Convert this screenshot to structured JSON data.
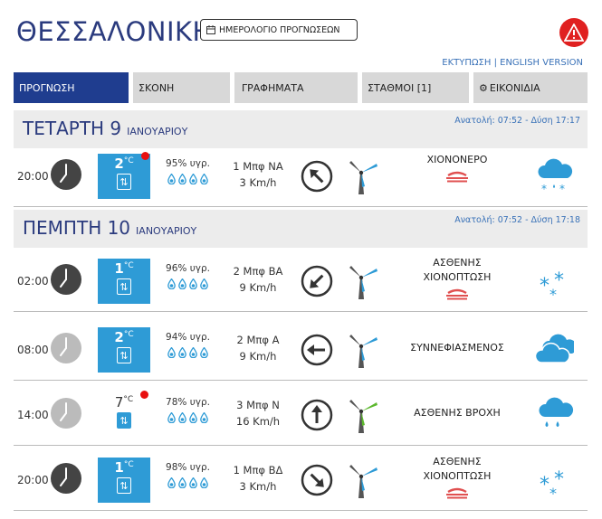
{
  "header": {
    "city": "ΘΕΣΣΑΛΟΝΙΚΗ",
    "calendar_button": "ΗΜΕΡΟΛΟΓΙΟ ΠΡΟΓΝΩΣΕΩΝ",
    "print_link": "ΕΚΤΥΠΩΣΗ",
    "separator": "|",
    "english_link": "ENGLISH VERSION"
  },
  "tabs": [
    {
      "label": "ΠΡΟΓΝΩΣΗ",
      "active": true
    },
    {
      "label": "ΣΚΟΝΗ"
    },
    {
      "label": "ΓΡΑΦΗΜΑΤΑ"
    },
    {
      "label": "ΣΤΑΘΜΟΙ [1]"
    },
    {
      "label": "ΕΙΚΟΝΙΔΙΑ",
      "icon": "gear-icon"
    }
  ],
  "days": [
    {
      "name": "ΤΕΤΑΡΤΗ 9",
      "month": "ΙΑΝΟΥΑΡΙΟΥ",
      "sun": "Ανατολή: 07:52 - Δύση 17:17",
      "rows": [
        {
          "time": "20:00",
          "clock": "night",
          "temp": "2",
          "unit": "°C",
          "temp_style": "blue",
          "alert": true,
          "humidity": "95% υγρ.",
          "beaufort": "1 Μπφ ΝΑ",
          "speed": "3 Km/h",
          "wind_dir": "arrow-northwest-icon",
          "turbine": "blue",
          "condition": [
            "ΧΙΟΝΟΝΕΡΟ"
          ],
          "fog": true,
          "weather_icon": "sleet-icon"
        }
      ]
    },
    {
      "name": "ΠΕΜΠΤΗ 10",
      "month": "ΙΑΝΟΥΑΡΙΟΥ",
      "sun": "Ανατολή: 07:52 - Δύση 17:18",
      "rows": [
        {
          "time": "02:00",
          "clock": "night",
          "temp": "1",
          "unit": "°C",
          "temp_style": "blue",
          "alert": false,
          "humidity": "96% υγρ.",
          "beaufort": "2 Μπφ ΒΑ",
          "speed": "9 Km/h",
          "wind_dir": "arrow-southwest-icon",
          "turbine": "blue",
          "condition": [
            "ΑΣΘΕΝΗΣ",
            "ΧΙΟΝΟΠΤΩΣΗ"
          ],
          "fog": true,
          "weather_icon": "snow-icon"
        },
        {
          "time": "08:00",
          "clock": "day",
          "temp": "2",
          "unit": "°C",
          "temp_style": "blue",
          "alert": false,
          "humidity": "94% υγρ.",
          "beaufort": "2 Μπφ Α",
          "speed": "9 Km/h",
          "wind_dir": "arrow-west-icon",
          "turbine": "blue",
          "condition": [
            "ΣΥΝΝΕΦΙΑΣΜΕΝΟΣ"
          ],
          "fog": false,
          "weather_icon": "cloudy-icon"
        },
        {
          "time": "14:00",
          "clock": "day",
          "temp": "7",
          "unit": "°C",
          "temp_style": "plain",
          "alert": true,
          "humidity": "78% υγρ.",
          "beaufort": "3 Μπφ Ν",
          "speed": "16 Km/h",
          "wind_dir": "arrow-north-icon",
          "turbine": "green",
          "condition": [
            "ΑΣΘΕΝΗΣ ΒΡΟΧΗ"
          ],
          "fog": false,
          "weather_icon": "rain-icon"
        },
        {
          "time": "20:00",
          "clock": "night",
          "temp": "1",
          "unit": "°C",
          "temp_style": "blue",
          "alert": false,
          "humidity": "98% υγρ.",
          "beaufort": "1 Μπφ ΒΔ",
          "speed": "3 Km/h",
          "wind_dir": "arrow-southeast-icon",
          "turbine": "blue",
          "condition": [
            "ΑΣΘΕΝΗΣ",
            "ΧΙΟΝΟΠΤΩΣΗ"
          ],
          "fog": true,
          "weather_icon": "snow-icon"
        }
      ]
    }
  ],
  "colors": {
    "accent": "#1f3d8f",
    "temp_box": "#2e9bd6",
    "alert": "#e81010",
    "fog": "#e05050"
  }
}
